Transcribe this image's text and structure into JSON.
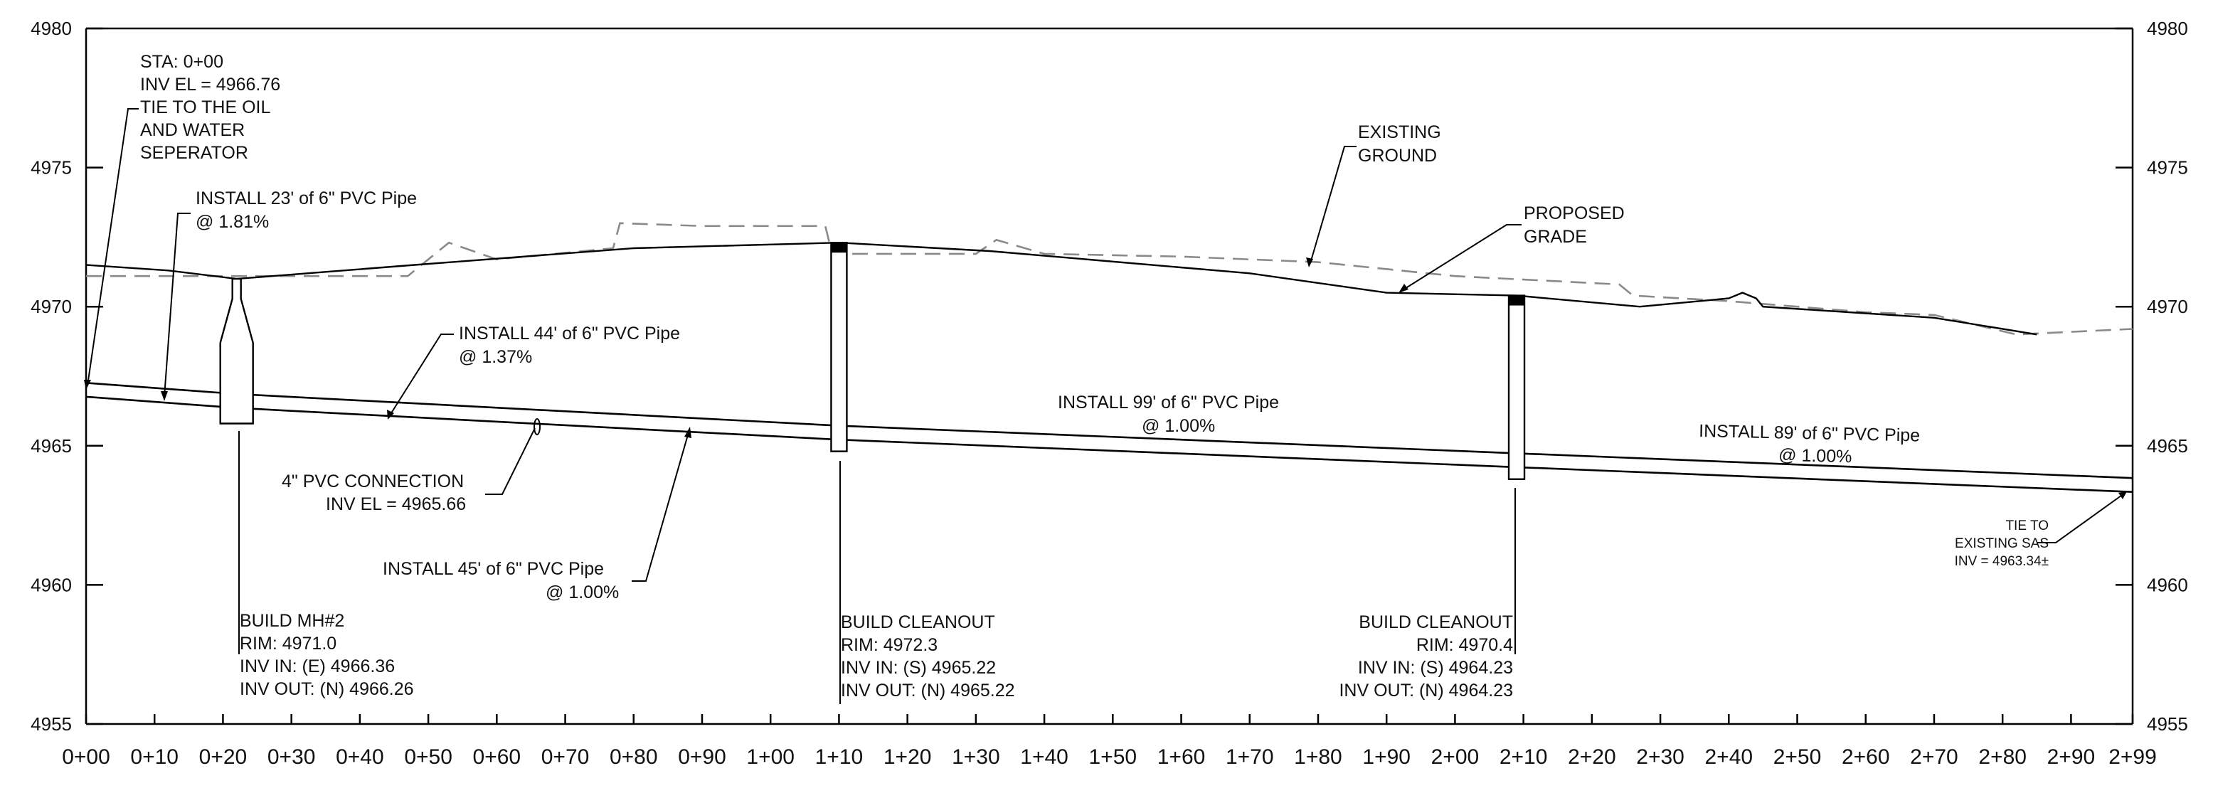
{
  "axes": {
    "y_left": [
      "4980",
      "4975",
      "4970",
      "4965",
      "4960",
      "4955"
    ],
    "y_right": [
      "4980",
      "4975",
      "4970",
      "4965",
      "4960",
      "4955"
    ],
    "x": [
      "0+00",
      "0+10",
      "0+20",
      "0+30",
      "0+40",
      "0+50",
      "0+60",
      "0+70",
      "0+80",
      "0+90",
      "1+00",
      "1+10",
      "1+20",
      "1+30",
      "1+40",
      "1+50",
      "1+60",
      "1+70",
      "1+80",
      "1+90",
      "2+00",
      "2+10",
      "2+20",
      "2+30",
      "2+40",
      "2+50",
      "2+60",
      "2+70",
      "2+80",
      "2+90",
      "2+99"
    ]
  },
  "chart_data": {
    "type": "line",
    "xlim": [
      0,
      299
    ],
    "ylim": [
      4955,
      4980
    ],
    "series": [
      {
        "name": "EXISTING GROUND",
        "style": "dashed",
        "x": [
          0,
          20,
          47,
          53,
          60,
          77,
          78,
          90,
          108,
          109,
          130,
          133,
          140,
          160,
          180,
          200,
          224,
          226,
          240,
          260,
          270,
          282,
          299
        ],
        "y": [
          4971.1,
          4971.1,
          4971.1,
          4972.3,
          4971.7,
          4972.1,
          4973.0,
          4972.9,
          4972.9,
          4971.9,
          4971.9,
          4972.4,
          4971.9,
          4971.8,
          4971.6,
          4971.1,
          4970.8,
          4970.4,
          4970.2,
          4969.8,
          4969.7,
          4969.0,
          4969.2
        ]
      },
      {
        "name": "PROPOSED GRADE",
        "style": "solid",
        "x": [
          0,
          12,
          22,
          48,
          80,
          110,
          132,
          170,
          190,
          209,
          227,
          240,
          242,
          244,
          245,
          270,
          285
        ],
        "y": [
          4971.5,
          4971.3,
          4971.0,
          4971.5,
          4972.1,
          4972.3,
          4972.0,
          4971.2,
          4970.5,
          4970.4,
          4970.0,
          4970.3,
          4970.5,
          4970.3,
          4970.0,
          4969.6,
          4969.0
        ]
      },
      {
        "name": "PIPE TOP",
        "style": "solid",
        "x": [
          0,
          22,
          110,
          209,
          299
        ],
        "y": [
          4967.26,
          4966.86,
          4965.72,
          4964.73,
          4963.84
        ]
      },
      {
        "name": "PIPE INVERT",
        "style": "solid",
        "x": [
          0,
          22,
          110,
          209,
          299
        ],
        "y": [
          4966.76,
          4966.36,
          4965.22,
          4964.23,
          4963.34
        ]
      }
    ],
    "structures": [
      {
        "name": "BUILD MH#2",
        "station": 22,
        "rim": 4971.0,
        "bottom": 4965.8
      },
      {
        "name": "BUILD CLEANOUT",
        "station": 110,
        "rim": 4972.3,
        "bottom": 4964.8
      },
      {
        "name": "BUILD CLEANOUT",
        "station": 209,
        "rim": 4970.4,
        "bottom": 4963.8
      }
    ]
  },
  "labels": {
    "sta_start": [
      "STA: 0+00",
      "INV EL = 4966.76",
      "TIE TO THE OIL",
      "AND WATER",
      "SEPERATOR"
    ],
    "pipe_1": [
      "INSTALL 23' of 6\" PVC Pipe",
      "@ 1.81%"
    ],
    "pipe_2": [
      "INSTALL 44' of 6\" PVC Pipe",
      "@ 1.37%"
    ],
    "pipe_3": [
      "INSTALL 45' of 6\" PVC Pipe",
      "@ 1.00%"
    ],
    "pipe_4": [
      "INSTALL 99' of 6\" PVC Pipe",
      "@ 1.00%"
    ],
    "pipe_5": [
      "INSTALL 89' of 6\" PVC Pipe",
      "@ 1.00%"
    ],
    "connection": [
      "4\" PVC CONNECTION",
      "INV EL = 4965.66"
    ],
    "existing_ground": [
      "EXISTING",
      "GROUND"
    ],
    "proposed_grade": [
      "PROPOSED",
      "GRADE"
    ],
    "mh2": [
      "BUILD MH#2",
      "RIM: 4971.0",
      "INV IN: (E) 4966.36",
      "INV OUT: (N) 4966.26"
    ],
    "cleanout_1": [
      "BUILD CLEANOUT",
      "RIM: 4972.3",
      "INV IN: (S) 4965.22",
      "INV OUT: (N) 4965.22"
    ],
    "cleanout_2": [
      "BUILD CLEANOUT",
      "RIM: 4970.4",
      "INV IN: (S) 4964.23",
      "INV OUT: (N) 4964.23"
    ],
    "tie_sas": [
      "TIE TO",
      "EXISTING SAS",
      "INV = 4963.34±"
    ]
  }
}
